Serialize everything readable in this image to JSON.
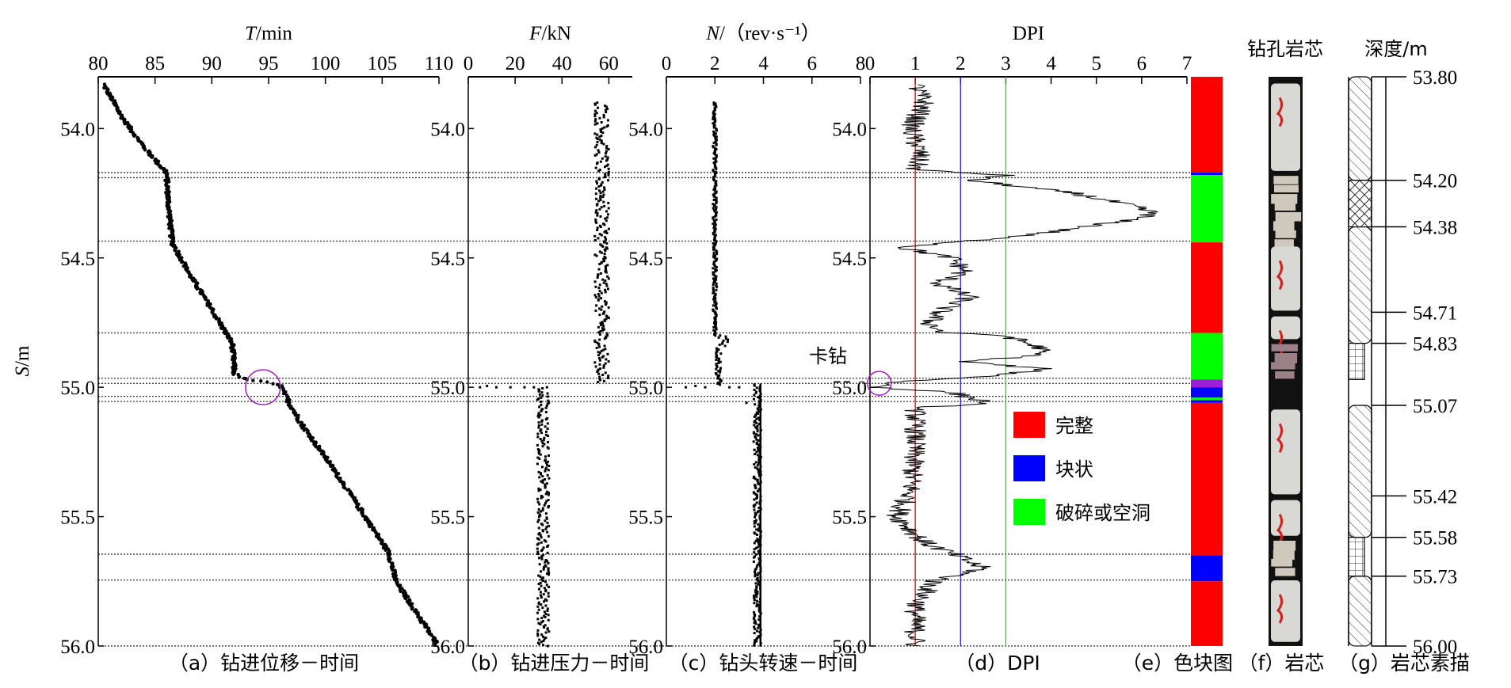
{
  "figure": {
    "y_axis_label": {
      "var": "S",
      "unit": "/m"
    },
    "annotation_stuck": "卡钻",
    "dotted_depths": [
      54.17,
      54.19,
      54.435,
      54.79,
      54.965,
      54.985,
      55.035,
      55.055,
      55.645,
      55.745,
      56.0
    ]
  },
  "chart_data": [
    {
      "id": "a",
      "type": "scatter",
      "title": {
        "var": "T",
        "unit": "/min"
      },
      "caption": "（a）钻进位移－时间",
      "xlim": [
        80,
        110
      ],
      "xticks": [
        "80",
        "85",
        "90",
        "95",
        "100",
        "105",
        "110"
      ],
      "ylim": [
        53.8,
        56.0
      ],
      "yticks": [
        "54.0",
        "54.5",
        "55.0",
        "55.5",
        "56.0"
      ],
      "curve_T_vs_S": [
        [
          80.5,
          53.83
        ],
        [
          82,
          53.95
        ],
        [
          84,
          54.07
        ],
        [
          86,
          54.17
        ],
        [
          86.2,
          54.3
        ],
        [
          86.5,
          54.44
        ],
        [
          88,
          54.56
        ],
        [
          90,
          54.7
        ],
        [
          91.8,
          54.83
        ],
        [
          92,
          54.95
        ],
        [
          93,
          54.97
        ],
        [
          96,
          54.99
        ],
        [
          96.8,
          55.06
        ],
        [
          98,
          55.15
        ],
        [
          100,
          55.27
        ],
        [
          102,
          55.4
        ],
        [
          103.5,
          55.5
        ],
        [
          105.6,
          55.64
        ],
        [
          106.2,
          55.75
        ],
        [
          108,
          55.87
        ],
        [
          109.8,
          55.99
        ]
      ],
      "highlight_circle": {
        "T": 94.5,
        "S": 55.0
      }
    },
    {
      "id": "b",
      "type": "scatter",
      "title": {
        "var": "F",
        "unit": "/kN"
      },
      "caption": "（b）钻进压力－时间",
      "xlim": [
        0,
        70
      ],
      "xticks": [
        "0",
        "20",
        "40",
        "60"
      ],
      "ylim": [
        53.8,
        56.0
      ],
      "yticks": [
        "54.0",
        "54.5",
        "55.0",
        "55.5",
        "56.0"
      ],
      "segments": [
        {
          "from": 53.9,
          "to": 54.98,
          "F": 57,
          "spread": 3
        },
        {
          "from": 55.0,
          "to": 56.0,
          "F": 32,
          "spread": 2.5
        }
      ],
      "outliers": [
        [
          5,
          55.0
        ],
        [
          8,
          54.995
        ],
        [
          12,
          55.0
        ],
        [
          18,
          55.0
        ],
        [
          24,
          55.0
        ],
        [
          28,
          55.0
        ]
      ]
    },
    {
      "id": "c",
      "type": "scatter",
      "title": {
        "var": "N",
        "unit": "/（rev·s⁻¹）"
      },
      "caption": "（c）钻头转速－时间",
      "xlim": [
        0,
        8
      ],
      "xticks": [
        "0",
        "2",
        "4",
        "6",
        "8"
      ],
      "ylim": [
        53.8,
        56.0
      ],
      "yticks": [
        "54.0",
        "54.5",
        "55.0",
        "55.5",
        "56.0"
      ],
      "segments": [
        {
          "from": 53.9,
          "to": 54.8,
          "N": 2.0,
          "spread": 0.08
        },
        {
          "from": 54.8,
          "to": 54.84,
          "N": 2.4,
          "spread": 0.25
        },
        {
          "from": 54.85,
          "to": 54.99,
          "N": 2.15,
          "spread": 0.12
        },
        {
          "from": 54.99,
          "to": 56.0,
          "N": 3.75,
          "spread": 0.15
        }
      ],
      "outliers": [
        [
          0.8,
          55.0
        ],
        [
          1.2,
          54.995
        ],
        [
          1.6,
          55.0
        ],
        [
          2.6,
          55.0
        ],
        [
          3.0,
          55.0
        ],
        [
          3.3,
          55.06
        ]
      ]
    },
    {
      "id": "d",
      "type": "line",
      "title": {
        "var": "",
        "unit": "DPI"
      },
      "caption": "（d）DPI",
      "xlim": [
        0,
        7
      ],
      "xticks": [
        "0",
        "1",
        "2",
        "3",
        "4",
        "5",
        "6",
        "7"
      ],
      "ylim": [
        53.8,
        56.0
      ],
      "yticks": [
        "54.0",
        "54.5",
        "55.0",
        "55.5",
        "56.0"
      ],
      "threshold_lines": [
        {
          "value": 1,
          "color": "#e00000"
        },
        {
          "value": 2,
          "color": "#2020e0"
        },
        {
          "value": 3,
          "color": "#20d020"
        }
      ],
      "profile_S_DPI": [
        [
          53.83,
          1.0
        ],
        [
          53.9,
          1.2
        ],
        [
          54.0,
          0.9
        ],
        [
          54.1,
          1.1
        ],
        [
          54.16,
          1.0
        ],
        [
          54.18,
          3.0
        ],
        [
          54.2,
          2.2
        ],
        [
          54.25,
          4.5
        ],
        [
          54.3,
          5.8
        ],
        [
          54.33,
          6.3
        ],
        [
          54.36,
          5.5
        ],
        [
          54.4,
          4.0
        ],
        [
          54.43,
          2.5
        ],
        [
          54.46,
          0.7
        ],
        [
          54.5,
          1.8
        ],
        [
          54.55,
          2.1
        ],
        [
          54.6,
          1.5
        ],
        [
          54.65,
          2.2
        ],
        [
          54.7,
          1.6
        ],
        [
          54.75,
          1.3
        ],
        [
          54.79,
          1.6
        ],
        [
          54.8,
          3.0
        ],
        [
          54.85,
          3.8
        ],
        [
          54.88,
          3.6
        ],
        [
          54.9,
          2.0
        ],
        [
          54.93,
          3.9
        ],
        [
          54.96,
          2.5
        ],
        [
          54.98,
          0.5
        ],
        [
          55.0,
          0.2
        ],
        [
          55.02,
          1.8
        ],
        [
          55.04,
          2.2
        ],
        [
          55.06,
          2.6
        ],
        [
          55.08,
          1.0
        ],
        [
          55.2,
          1.0
        ],
        [
          55.4,
          0.9
        ],
        [
          55.5,
          0.6
        ],
        [
          55.6,
          1.2
        ],
        [
          55.65,
          1.9
        ],
        [
          55.7,
          2.5
        ],
        [
          55.75,
          1.4
        ],
        [
          55.85,
          1.0
        ],
        [
          56.0,
          1.0
        ]
      ],
      "highlight_circle": {
        "DPI": 0.1,
        "S": 55.0
      },
      "legend": [
        {
          "label": "完整",
          "color": "#ff0000"
        },
        {
          "label": "块状",
          "color": "#0000ff"
        },
        {
          "label": "破碎或空洞",
          "color": "#00ff00"
        }
      ]
    },
    {
      "id": "e",
      "type": "table",
      "caption": "（e）色块图",
      "blocks": [
        {
          "from": 53.8,
          "to": 54.17,
          "color": "#ff0000"
        },
        {
          "from": 54.17,
          "to": 54.18,
          "color": "#0000ff"
        },
        {
          "from": 54.18,
          "to": 54.44,
          "color": "#00ff00"
        },
        {
          "from": 54.44,
          "to": 54.79,
          "color": "#ff0000"
        },
        {
          "from": 54.79,
          "to": 54.97,
          "color": "#00ff00"
        },
        {
          "from": 54.97,
          "to": 55.0,
          "color": "#9b1fd6"
        },
        {
          "from": 55.0,
          "to": 55.04,
          "color": "#0000ff"
        },
        {
          "from": 55.04,
          "to": 55.05,
          "color": "#00ff00"
        },
        {
          "from": 55.05,
          "to": 55.06,
          "color": "#0000ff"
        },
        {
          "from": 55.06,
          "to": 55.65,
          "color": "#ff0000"
        },
        {
          "from": 55.65,
          "to": 55.75,
          "color": "#0000ff"
        },
        {
          "from": 55.75,
          "to": 56.0,
          "color": "#ff0000"
        }
      ]
    },
    {
      "id": "f",
      "type": "table",
      "title": "钻孔岩芯",
      "caption": "（f）岩芯",
      "pieces": [
        {
          "from": 53.82,
          "to": 54.17,
          "kind": "intact"
        },
        {
          "from": 54.18,
          "to": 54.44,
          "kind": "broken"
        },
        {
          "from": 54.45,
          "to": 54.71,
          "kind": "intact"
        },
        {
          "from": 54.72,
          "to": 54.82,
          "kind": "intact"
        },
        {
          "from": 54.83,
          "to": 54.95,
          "kind": "broken"
        },
        {
          "from": 55.08,
          "to": 55.42,
          "kind": "intact"
        },
        {
          "from": 55.43,
          "to": 55.58,
          "kind": "intact"
        },
        {
          "from": 55.59,
          "to": 55.72,
          "kind": "broken"
        },
        {
          "from": 55.74,
          "to": 55.99,
          "kind": "intact"
        }
      ]
    },
    {
      "id": "g",
      "type": "table",
      "title": "深度/m",
      "caption": "（g）岩芯素描",
      "depth_labels": [
        "53.80",
        "54.20",
        "54.38",
        "54.71",
        "54.83",
        "55.07",
        "55.42",
        "55.58",
        "55.73",
        "56.00"
      ],
      "depth_values": [
        53.8,
        54.2,
        54.38,
        54.71,
        54.83,
        55.07,
        55.42,
        55.58,
        55.73,
        56.0
      ],
      "zones": [
        {
          "from": 53.8,
          "to": 54.2,
          "kind": "intact"
        },
        {
          "from": 54.2,
          "to": 54.38,
          "kind": "broken"
        },
        {
          "from": 54.38,
          "to": 54.83,
          "kind": "intact"
        },
        {
          "from": 54.83,
          "to": 54.97,
          "kind": "blocky"
        },
        {
          "from": 55.07,
          "to": 55.58,
          "kind": "intact"
        },
        {
          "from": 55.58,
          "to": 55.73,
          "kind": "blocky"
        },
        {
          "from": 55.73,
          "to": 56.0,
          "kind": "intact"
        }
      ]
    }
  ]
}
